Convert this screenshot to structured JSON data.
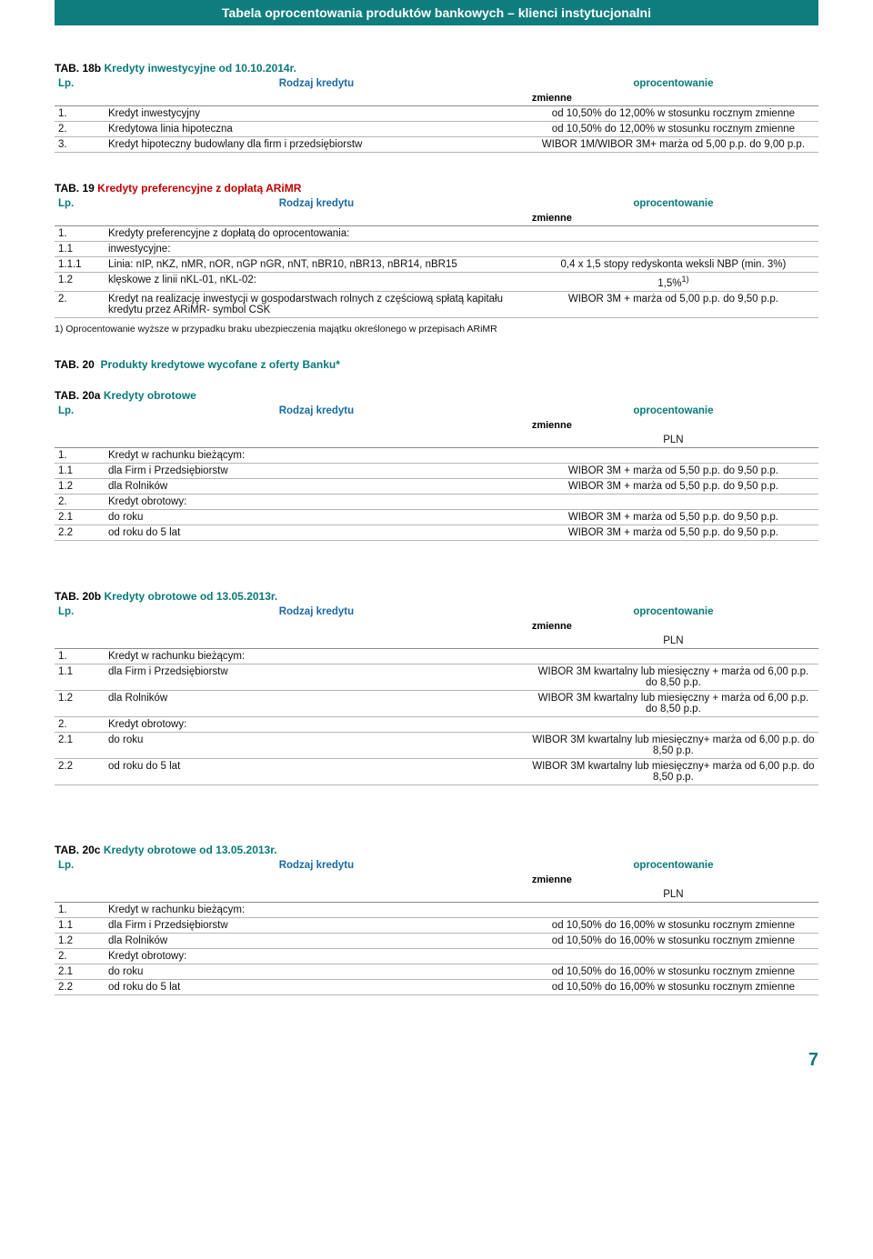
{
  "banner": "Tabela oprocentowania produktów bankowych – klienci instytucjonalni",
  "labels": {
    "lp": "Lp.",
    "rodzaj": "Rodzaj kredytu",
    "oproc": "oprocentowanie",
    "zmienne": "zmienne",
    "pln": "PLN",
    "tab_prefix": "TAB."
  },
  "pageNumber": "7",
  "tab18b": {
    "code": "18b",
    "title": "Kredyty inwestycyjne od 10.10.2014r.",
    "rows": [
      {
        "lp": "1.",
        "name": "Kredyt inwestycyjny",
        "val": "od 10,50% do 12,00% w stosunku rocznym zmienne"
      },
      {
        "lp": "2.",
        "name": "Kredytowa linia hipoteczna",
        "val": "od 10,50% do 12,00% w stosunku rocznym zmienne"
      },
      {
        "lp": "3.",
        "name": "Kredyt hipoteczny budowlany dla firm i przedsiębiorstw",
        "val": "WIBOR 1M/WIBOR 3M+ marża od 5,00 p.p. do 9,00 p.p."
      }
    ]
  },
  "tab19": {
    "code": "19",
    "title": "Kredyty preferencyjne z dopłatą ARiMR",
    "rows": [
      {
        "lp": "1.",
        "name": "Kredyty preferencyjne z dopłatą do oprocentowania:",
        "val": ""
      },
      {
        "lp": "1.1",
        "name": "inwestycyjne:",
        "val": ""
      },
      {
        "lp": "1.1.1",
        "name": "Linia: nIP, nKZ, nMR, nOR, nGP nGR, nNT, nBR10, nBR13, nBR14, nBR15",
        "val": "0,4 x 1,5 stopy redyskonta weksli NBP (min. 3%)"
      },
      {
        "lp": "1.2",
        "name": "klęskowe z linii nKL-01, nKL-02:",
        "val": "1,5%",
        "sup": "1)"
      },
      {
        "lp": "2.",
        "name": "Kredyt na realizację inwestycji w gospodarstwach rolnych z częściową spłatą kapitału kredytu przez ARiMR- symbol CSK",
        "val": "WIBOR 3M + marża od 5,00 p.p. do 9,50 p.p."
      }
    ],
    "footnote": "1)  Oprocentowanie wyższe w przypadku braku ubezpieczenia majątku określonego w przepisach ARiMR"
  },
  "tab20": {
    "code": "20",
    "title": "Produkty kredytowe wycofane z oferty Banku*"
  },
  "tab20a": {
    "code": "20a",
    "title": "Kredyty obrotowe",
    "rows": [
      {
        "lp": "1.",
        "name": "Kredyt w rachunku bieżącym:",
        "val": ""
      },
      {
        "lp": "1.1",
        "name": "dla Firm i Przedsiębiorstw",
        "val": "WIBOR 3M + marża od 5,50 p.p. do 9,50 p.p."
      },
      {
        "lp": "1.2",
        "name": "dla Rolników",
        "val": "WIBOR 3M + marża od 5,50 p.p. do 9,50 p.p."
      },
      {
        "lp": "2.",
        "name": "Kredyt obrotowy:",
        "val": ""
      },
      {
        "lp": "2.1",
        "name": "do roku",
        "val": "WIBOR 3M + marża od 5,50 p.p. do 9,50 p.p."
      },
      {
        "lp": "2.2",
        "name": "od roku do 5 lat",
        "val": "WIBOR 3M + marża od 5,50 p.p. do 9,50 p.p."
      }
    ]
  },
  "tab20b": {
    "code": "20b",
    "title": "Kredyty obrotowe od 13.05.2013r.",
    "rows": [
      {
        "lp": "1.",
        "name": "Kredyt w rachunku bieżącym:",
        "val": ""
      },
      {
        "lp": "1.1",
        "name": "dla Firm i Przedsiębiorstw",
        "val": "WIBOR 3M kwartalny lub miesięczny + marża od 6,00 p.p. do 8,50 p.p."
      },
      {
        "lp": "1.2",
        "name": "dla Rolników",
        "val": "WIBOR 3M kwartalny lub miesięczny + marża od 6,00 p.p. do 8,50 p.p."
      },
      {
        "lp": "2.",
        "name": "Kredyt obrotowy:",
        "val": ""
      },
      {
        "lp": "2.1",
        "name": "do roku",
        "val": "WIBOR 3M kwartalny lub miesięczny+ marża od 6,00 p.p. do 8,50 p.p."
      },
      {
        "lp": "2.2",
        "name": "od roku do 5 lat",
        "val": "WIBOR 3M kwartalny lub miesięczny+ marża od 6,00 p.p. do 8,50 p.p."
      }
    ]
  },
  "tab20c": {
    "code": "20c",
    "title": "Kredyty obrotowe od 13.05.2013r.",
    "rows": [
      {
        "lp": "1.",
        "name": "Kredyt w rachunku bieżącym:",
        "val": ""
      },
      {
        "lp": "1.1",
        "name": "dla Firm i Przedsiębiorstw",
        "val": "od 10,50% do 16,00% w stosunku rocznym zmienne"
      },
      {
        "lp": "1.2",
        "name": "dla Rolników",
        "val": "od 10,50% do 16,00% w stosunku rocznym zmienne"
      },
      {
        "lp": "2.",
        "name": "Kredyt obrotowy:",
        "val": ""
      },
      {
        "lp": "2.1",
        "name": "do roku",
        "val": "od 10,50% do 16,00% w stosunku rocznym zmienne"
      },
      {
        "lp": "2.2",
        "name": "od roku do 5 lat",
        "val": "od 10,50% do 16,00% w stosunku rocznym zmienne"
      }
    ]
  }
}
